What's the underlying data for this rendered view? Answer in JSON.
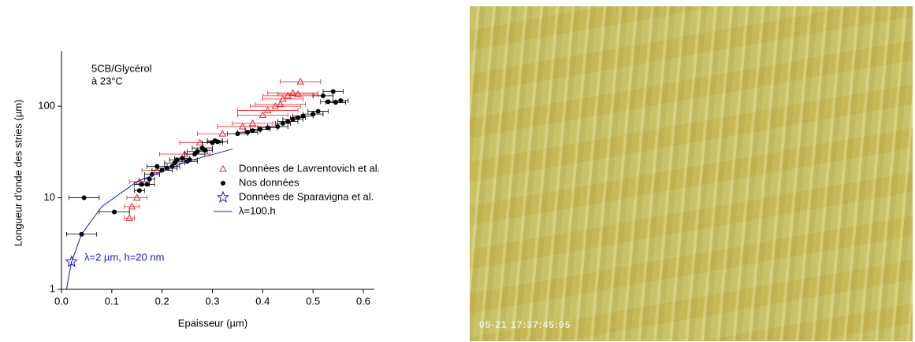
{
  "chart_data": {
    "type": "scatter",
    "xlabel": "Epaisseur (µm)",
    "ylabel": "Longueur d'onde des stries (µm)",
    "annotations": [
      "5CB/Glycérol",
      "à 23°C",
      "λ=2 µm, h=20 nm"
    ],
    "xlim": [
      0,
      0.6
    ],
    "xticks": [
      {
        "value": 0,
        "label": "0.0"
      },
      0.1,
      0.2,
      0.3,
      0.4,
      0.5,
      0.6
    ],
    "ylim": [
      1,
      400
    ],
    "yticks": [
      1,
      10,
      100
    ],
    "log_y": true,
    "legend": "right",
    "series": [
      {
        "name": "Données de Lavrentovich et al.",
        "color": "#e8262b",
        "marker": "triangle",
        "x": [
          0.135,
          0.14,
          0.15,
          0.155,
          0.19,
          0.245,
          0.275,
          0.32,
          0.36,
          0.38,
          0.4,
          0.41,
          0.425,
          0.435,
          0.44,
          0.45,
          0.46,
          0.47,
          0.475
        ],
        "values": [
          6,
          8,
          10,
          15,
          20,
          30,
          40,
          50,
          60,
          65,
          80,
          90,
          100,
          105,
          120,
          130,
          140,
          135,
          185
        ],
        "xerr": [
          0.01,
          0.015,
          0.02,
          0.02,
          0.03,
          0.05,
          0.04,
          0.05,
          0.05,
          0.04,
          0.05,
          0.06,
          0.05,
          0.05,
          0.04,
          0.05,
          0.05,
          0.04,
          0.04
        ]
      },
      {
        "name": "Nos données",
        "color": "#000000",
        "marker": "circle",
        "x": [
          0.04,
          0.045,
          0.105,
          0.155,
          0.16,
          0.17,
          0.175,
          0.18,
          0.19,
          0.2,
          0.21,
          0.22,
          0.225,
          0.23,
          0.24,
          0.25,
          0.255,
          0.265,
          0.27,
          0.28,
          0.285,
          0.3,
          0.305,
          0.31,
          0.35,
          0.37,
          0.38,
          0.395,
          0.41,
          0.43,
          0.44,
          0.45,
          0.46,
          0.47,
          0.48,
          0.5,
          0.51,
          0.52,
          0.53,
          0.54,
          0.545,
          0.555
        ],
        "values": [
          4,
          10,
          7,
          12,
          14,
          14,
          16,
          18,
          22,
          20,
          21,
          22,
          24,
          26,
          27,
          25,
          26,
          30,
          32,
          35,
          33,
          40,
          42,
          41,
          50,
          52,
          54,
          56,
          58,
          60,
          65,
          68,
          72,
          75,
          78,
          82,
          88,
          130,
          112,
          145,
          110,
          115
        ],
        "xerr": [
          0.03,
          0.03,
          0.03,
          0.01,
          0.015,
          0.015,
          0.01,
          0.015,
          0.02,
          0.02,
          0.02,
          0.015,
          0.02,
          0.015,
          0.015,
          0.02,
          0.015,
          0.02,
          0.02,
          0.02,
          0.015,
          0.02,
          0.015,
          0.02,
          0.02,
          0.02,
          0.015,
          0.02,
          0.02,
          0.02,
          0.015,
          0.02,
          0.02,
          0.015,
          0.02,
          0.02,
          0.02,
          0.02,
          0.015,
          0.02,
          0.02,
          0.015
        ]
      },
      {
        "name": "Données de Sparavigna et al.",
        "color": "#1a1acc",
        "marker": "star",
        "x": [
          0.02
        ],
        "values": [
          2
        ],
        "xerr": [
          0
        ]
      },
      {
        "name": "λ=100.h",
        "color": "#1a1acc",
        "marker": "line",
        "x": [
          0.01,
          0.02,
          0.04,
          0.08,
          0.15,
          0.25,
          0.34
        ],
        "values": [
          1,
          2,
          4,
          8,
          15,
          25,
          34
        ]
      }
    ]
  },
  "image": {
    "timestamp": "05-21 17:37:45:05"
  }
}
